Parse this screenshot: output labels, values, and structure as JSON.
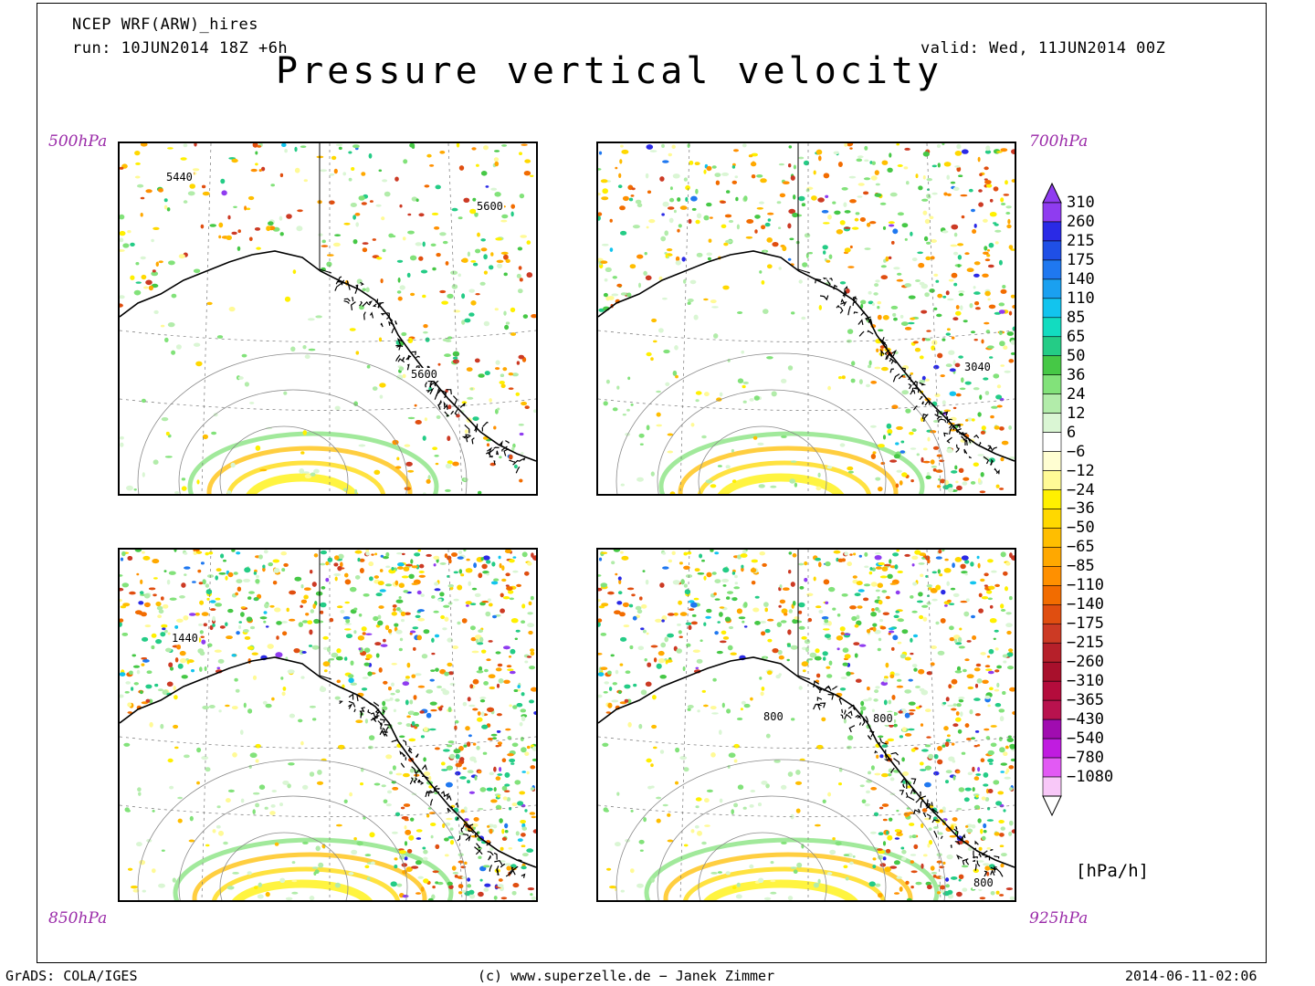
{
  "header": {
    "model": "NCEP WRF(ARW)_hires",
    "run": "run: 10JUN2014 18Z +6h",
    "valid": "valid: Wed, 11JUN2014 00Z",
    "title": "Pressure vertical velocity"
  },
  "panels": [
    {
      "level": "500hPa",
      "contour_labels": [
        "5440",
        "5600",
        "5600"
      ],
      "activity": 0.18
    },
    {
      "level": "700hPa",
      "contour_labels": [
        "3040"
      ],
      "activity": 0.35
    },
    {
      "level": "850hPa",
      "contour_labels": [
        "1440"
      ],
      "activity": 0.62
    },
    {
      "level": "925hPa",
      "contour_labels": [
        "800",
        "800",
        "800"
      ],
      "activity": 0.55
    }
  ],
  "colorbar": {
    "units": "[hPa/h]",
    "labels": [
      "310",
      "260",
      "215",
      "175",
      "140",
      "110",
      "85",
      "65",
      "50",
      "36",
      "24",
      "12",
      "6",
      "−6",
      "−12",
      "−24",
      "−36",
      "−50",
      "−65",
      "−85",
      "−110",
      "−140",
      "−175",
      "−215",
      "−260",
      "−310",
      "−365",
      "−430",
      "−540",
      "−780",
      "−1080"
    ],
    "colors": [
      "#8f3cf0",
      "#2a2ae6",
      "#1f4fe6",
      "#1f78f0",
      "#1aa0f0",
      "#12c4ee",
      "#12dcc0",
      "#24cc86",
      "#46c846",
      "#82e27a",
      "#b2ecaa",
      "#daf6d4",
      "#ffffff",
      "#fffed2",
      "#fffa96",
      "#fff000",
      "#ffd800",
      "#ffbe00",
      "#ffa800",
      "#ff9000",
      "#f26c00",
      "#e04e10",
      "#cc3a24",
      "#b6202a",
      "#a8102c",
      "#b40c3c",
      "#b8124e",
      "#a00cb0",
      "#c01ce0",
      "#e25af4",
      "#f8c8f8"
    ]
  },
  "footer": {
    "left": "GrADS: COLA/IGES",
    "center": "(c) www.superzelle.de − Janek Zimmer",
    "right": "2014-06-11-02:06"
  }
}
